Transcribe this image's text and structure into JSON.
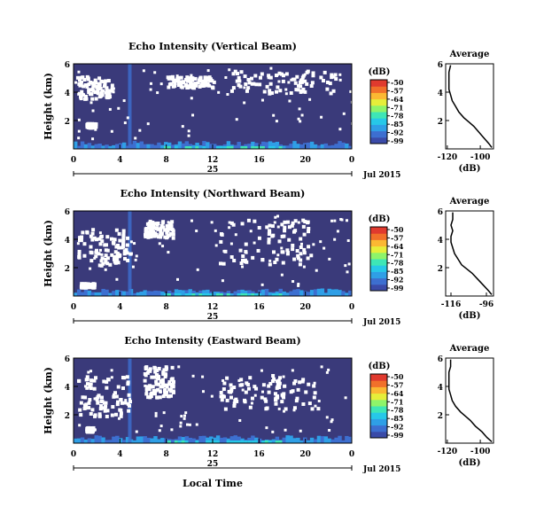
{
  "date_label": "Jul 2015",
  "colors": {
    "background": "#ffffff",
    "echo_low": "#3a3a7a",
    "gap": "#ffffff",
    "colormap": [
      "#3b4ba8",
      "#3d6fd0",
      "#2f9fe6",
      "#27c8e8",
      "#3ee6b6",
      "#8ef46a",
      "#e6ee3a",
      "#fbb833",
      "#f1702a",
      "#e03a2e"
    ]
  },
  "chart_data": [
    {
      "type": "heatmap",
      "title": "Echo Intensity (Vertical Beam)",
      "xlabel": "",
      "ylabel": "Height (km)",
      "x_ticks": [
        "0",
        "4",
        "8",
        "12",
        "16",
        "20",
        "0"
      ],
      "x_day_label": "25",
      "y_ticks": [
        "2",
        "4",
        "6"
      ],
      "xlim": [
        0,
        24
      ],
      "ylim": [
        0,
        6
      ],
      "colorbar": {
        "unit": "(dB)",
        "ticks": [
          "-50",
          "-57",
          "-64",
          "-71",
          "-78",
          "-85",
          "-92",
          "-99"
        ]
      },
      "profile": {
        "title": "Average",
        "xlabel": "(dB)",
        "x_ticks": [
          "-120",
          "-100"
        ],
        "y_ticks": [
          "2",
          "4",
          "6"
        ],
        "xlim": [
          -121,
          -92
        ],
        "ylim": [
          0,
          6
        ],
        "x": [
          -93,
          -95,
          -98,
          -101,
          -104,
          -107,
          -110,
          -113,
          -115,
          -117,
          -118,
          -119,
          -119,
          -119,
          -119,
          -118
        ],
        "y": [
          0.1,
          0.4,
          0.8,
          1.2,
          1.6,
          1.9,
          2.2,
          2.6,
          3.0,
          3.4,
          3.8,
          4.2,
          4.6,
          5.0,
          5.4,
          5.9
        ]
      }
    },
    {
      "type": "heatmap",
      "title": "Echo Intensity (Northward Beam)",
      "xlabel": "",
      "ylabel": "Height (km)",
      "x_ticks": [
        "0",
        "4",
        "8",
        "12",
        "16",
        "20",
        "0"
      ],
      "x_day_label": "25",
      "y_ticks": [
        "2",
        "4",
        "6"
      ],
      "xlim": [
        0,
        24
      ],
      "ylim": [
        0,
        6
      ],
      "colorbar": {
        "unit": "(dB)",
        "ticks": [
          "-50",
          "-57",
          "-64",
          "-71",
          "-78",
          "-85",
          "-92",
          "-99"
        ]
      },
      "profile": {
        "title": "Average",
        "xlabel": "(dB)",
        "x_ticks": [
          "-116",
          "-96"
        ],
        "y_ticks": [
          "2",
          "4",
          "6"
        ],
        "xlim": [
          -119,
          -92
        ],
        "ylim": [
          0,
          6
        ],
        "x": [
          -93,
          -95,
          -98,
          -101,
          -104,
          -107,
          -110,
          -112,
          -114,
          -115,
          -116,
          -116,
          -115,
          -116,
          -115,
          -115
        ],
        "y": [
          0.1,
          0.4,
          0.8,
          1.2,
          1.6,
          1.9,
          2.2,
          2.6,
          3.0,
          3.4,
          3.8,
          4.2,
          4.6,
          5.0,
          5.4,
          5.9
        ]
      }
    },
    {
      "type": "heatmap",
      "title": "Echo Intensity (Eastward Beam)",
      "xlabel": "Local Time",
      "ylabel": "Height (km)",
      "x_ticks": [
        "0",
        "4",
        "8",
        "12",
        "16",
        "20",
        "0"
      ],
      "x_day_label": "25",
      "y_ticks": [
        "2",
        "4",
        "6"
      ],
      "xlim": [
        0,
        24
      ],
      "ylim": [
        0,
        6
      ],
      "colorbar": {
        "unit": "(dB)",
        "ticks": [
          "-50",
          "-57",
          "-64",
          "-71",
          "-78",
          "-85",
          "-92",
          "-99"
        ]
      },
      "profile": {
        "title": "Average",
        "xlabel": "(dB)",
        "x_ticks": [
          "-120",
          "-100"
        ],
        "y_ticks": [
          "2",
          "4",
          "6"
        ],
        "xlim": [
          -121,
          -92
        ],
        "ylim": [
          0,
          6
        ],
        "x": [
          -93,
          -96,
          -99,
          -103,
          -106,
          -109,
          -112,
          -115,
          -117,
          -118,
          -119,
          -119,
          -119,
          -119,
          -118,
          -118
        ],
        "y": [
          0.1,
          0.4,
          0.8,
          1.2,
          1.6,
          1.9,
          2.2,
          2.6,
          3.0,
          3.4,
          3.8,
          4.2,
          4.6,
          5.0,
          5.4,
          5.9
        ]
      }
    }
  ]
}
